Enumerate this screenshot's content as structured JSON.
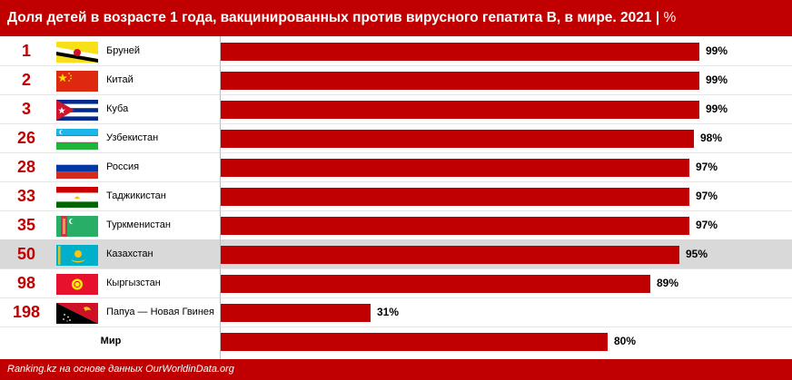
{
  "header": {
    "title": "Доля детей в возрасте 1 года, вакцинированных против вирусного гепатита В, в мире. 2021",
    "separator": " | ",
    "unit": "%"
  },
  "footer": {
    "source": "Ranking.kz на основе данных OurWorldinData.org"
  },
  "colors": {
    "accent": "#c00000",
    "highlight_row": "#d9d9d9"
  },
  "chart_data": {
    "type": "bar",
    "orientation": "horizontal",
    "xlim": [
      0,
      100
    ],
    "value_suffix": "%",
    "highlighted_category": "Казахстан",
    "categories": [
      "Бруней",
      "Китай",
      "Куба",
      "Узбекистан",
      "Россия",
      "Таджикистан",
      "Туркменистан",
      "Казахстан",
      "Кыргызстан",
      "Папуа — Новая Гвинея",
      "Мир"
    ],
    "ranks": [
      "1",
      "2",
      "3",
      "26",
      "28",
      "33",
      "35",
      "50",
      "98",
      "198",
      ""
    ],
    "values": [
      99,
      99,
      99,
      98,
      97,
      97,
      97,
      95,
      89,
      31,
      80
    ],
    "flags": [
      "brunei-flag-icon",
      "china-flag-icon",
      "cuba-flag-icon",
      "uzbekistan-flag-icon",
      "russia-flag-icon",
      "tajikistan-flag-icon",
      "turkmenistan-flag-icon",
      "kazakhstan-flag-icon",
      "kyrgyzstan-flag-icon",
      "papua-new-guinea-flag-icon",
      ""
    ]
  }
}
